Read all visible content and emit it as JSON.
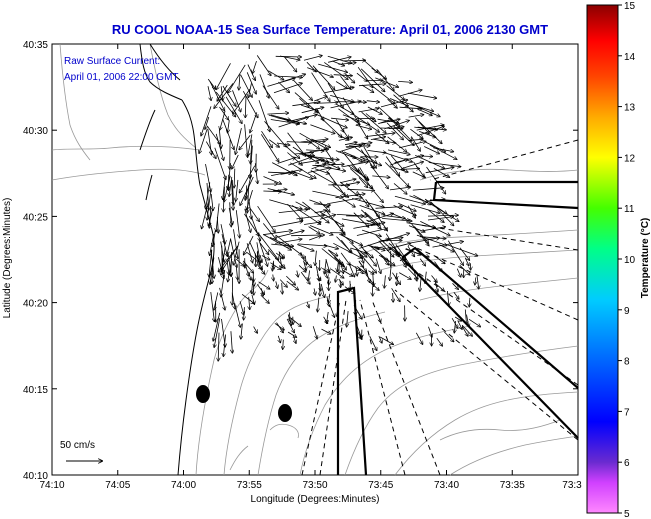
{
  "title": "RU COOL  NOAA-15  Sea Surface Temperature:  April 01, 2006 2130 GMT",
  "annotation": {
    "line1": "Raw Surface Current:",
    "line2": "April 01, 2006 22:00 GMT"
  },
  "map": {
    "xlabel": "Longitude (Degrees:Minutes)",
    "ylabel": "Latitude (Degrees:Minutes)",
    "lon_ticks": [
      "74:10",
      "74:05",
      "74:00",
      "73:55",
      "73:50",
      "73:45",
      "73:40",
      "73:35",
      "73:3"
    ],
    "lat_ticks": [
      "40:35",
      "40:30",
      "40:25",
      "40:20",
      "40:15",
      "40:10"
    ],
    "scale_label": "50 cm/s"
  },
  "colorbar": {
    "title": "Temperature (°C)",
    "ticks": [
      "15",
      "14",
      "13",
      "12",
      "11",
      "10",
      "9",
      "8",
      "7",
      "6",
      "5"
    ],
    "range": [
      5,
      15
    ]
  },
  "colors": {
    "title_text": "#0000cc",
    "land_outline": "#000000",
    "bathymetry": "#999999",
    "vectors": "#000000"
  },
  "markers": {
    "stations": 2
  }
}
